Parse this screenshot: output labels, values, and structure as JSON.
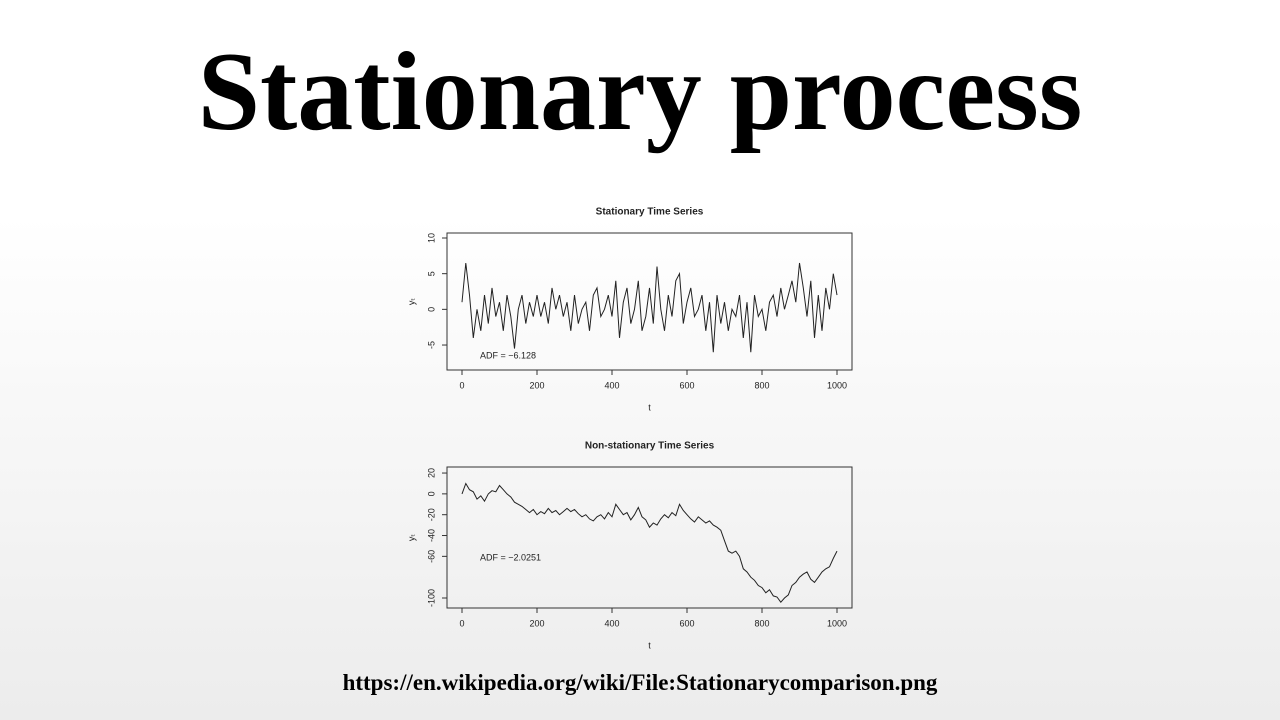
{
  "title": "Stationary process",
  "source": "https://en.wikipedia.org/wiki/File:Stationarycomparison.png",
  "chart_data": [
    {
      "type": "line",
      "title": "Stationary Time Series",
      "x_label": "t",
      "y_label": "yₜ",
      "annotation": "ADF = −6.128",
      "color": "#222222",
      "x": [
        0,
        10,
        20,
        30,
        40,
        50,
        60,
        70,
        80,
        90,
        100,
        110,
        120,
        130,
        140,
        150,
        160,
        170,
        180,
        190,
        200,
        210,
        220,
        230,
        240,
        250,
        260,
        270,
        280,
        290,
        300,
        310,
        320,
        330,
        340,
        350,
        360,
        370,
        380,
        390,
        400,
        410,
        420,
        430,
        440,
        450,
        460,
        470,
        480,
        490,
        500,
        510,
        520,
        530,
        540,
        550,
        560,
        570,
        580,
        590,
        600,
        610,
        620,
        630,
        640,
        650,
        660,
        670,
        680,
        690,
        700,
        710,
        720,
        730,
        740,
        750,
        760,
        770,
        780,
        790,
        800,
        810,
        820,
        830,
        840,
        850,
        860,
        870,
        880,
        890,
        900,
        910,
        920,
        930,
        940,
        950,
        960,
        970,
        980,
        990,
        1000
      ],
      "values": [
        1,
        6.5,
        2,
        -4,
        0,
        -3,
        2,
        -2,
        3,
        -1,
        1,
        -3,
        2,
        -1,
        -5.5,
        0,
        2,
        -2,
        1,
        -1,
        2,
        -1,
        1,
        -2,
        3,
        0,
        2,
        -1,
        1,
        -3,
        2,
        -2,
        0,
        1,
        -3,
        2,
        3,
        -1,
        0,
        2,
        -1,
        4,
        -4,
        1,
        3,
        -2,
        0,
        4,
        -3,
        -1,
        3,
        -2,
        6,
        0,
        -3,
        2,
        -1,
        4,
        5,
        -2,
        1,
        3,
        -1,
        0,
        2,
        -3,
        1,
        -6,
        2,
        -2,
        1,
        -3,
        0,
        -1,
        2,
        -4,
        1,
        -6,
        2,
        -1,
        0,
        -3,
        1,
        2,
        -1,
        3,
        0,
        2,
        4,
        1,
        6.5,
        3,
        -1,
        4,
        -4,
        2,
        -3,
        3,
        0,
        5,
        2
      ],
      "xlim": [
        -40,
        1040
      ],
      "ylim": [
        -8.5,
        10.7
      ],
      "xticks": [
        0,
        200,
        400,
        600,
        800,
        1000
      ],
      "yticks": [
        -5,
        0,
        5,
        10
      ]
    },
    {
      "type": "line",
      "title": "Non-stationary Time Series",
      "x_label": "t",
      "y_label": "yₜ",
      "annotation": "ADF = −2.0251",
      "color": "#222222",
      "x": [
        0,
        10,
        20,
        30,
        40,
        50,
        60,
        70,
        80,
        90,
        100,
        110,
        120,
        130,
        140,
        150,
        160,
        170,
        180,
        190,
        200,
        210,
        220,
        230,
        240,
        250,
        260,
        270,
        280,
        290,
        300,
        310,
        320,
        330,
        340,
        350,
        360,
        370,
        380,
        390,
        400,
        410,
        420,
        430,
        440,
        450,
        460,
        470,
        480,
        490,
        500,
        510,
        520,
        530,
        540,
        550,
        560,
        570,
        580,
        590,
        600,
        610,
        620,
        630,
        640,
        650,
        660,
        670,
        680,
        690,
        700,
        710,
        720,
        730,
        740,
        750,
        760,
        770,
        780,
        790,
        800,
        810,
        820,
        830,
        840,
        850,
        860,
        870,
        880,
        890,
        900,
        910,
        920,
        930,
        940,
        950,
        960,
        970,
        980,
        990,
        1000
      ],
      "values": [
        0,
        10,
        4,
        2,
        -5,
        -2,
        -7,
        0,
        3,
        2,
        8,
        4,
        0,
        -3,
        -8,
        -10,
        -12,
        -15,
        -18,
        -15,
        -20,
        -17,
        -19,
        -14,
        -18,
        -16,
        -20,
        -17,
        -14,
        -17,
        -15,
        -19,
        -22,
        -20,
        -24,
        -26,
        -22,
        -20,
        -24,
        -18,
        -22,
        -10,
        -15,
        -20,
        -18,
        -25,
        -20,
        -13,
        -22,
        -25,
        -32,
        -28,
        -30,
        -24,
        -20,
        -23,
        -18,
        -21,
        -10,
        -16,
        -20,
        -24,
        -27,
        -22,
        -25,
        -28,
        -26,
        -30,
        -32,
        -35,
        -45,
        -55,
        -57,
        -55,
        -60,
        -72,
        -75,
        -80,
        -83,
        -88,
        -90,
        -95,
        -92,
        -98,
        -99,
        -104,
        -100,
        -97,
        -88,
        -85,
        -80,
        -77,
        -75,
        -82,
        -85,
        -80,
        -75,
        -72,
        -70,
        -62,
        -55
      ],
      "xlim": [
        -40,
        1040
      ],
      "ylim": [
        -109.6,
        25.8
      ],
      "xticks": [
        0,
        200,
        400,
        600,
        800,
        1000
      ],
      "yticks": [
        -100,
        -60,
        -40,
        -20,
        0,
        20
      ]
    }
  ]
}
